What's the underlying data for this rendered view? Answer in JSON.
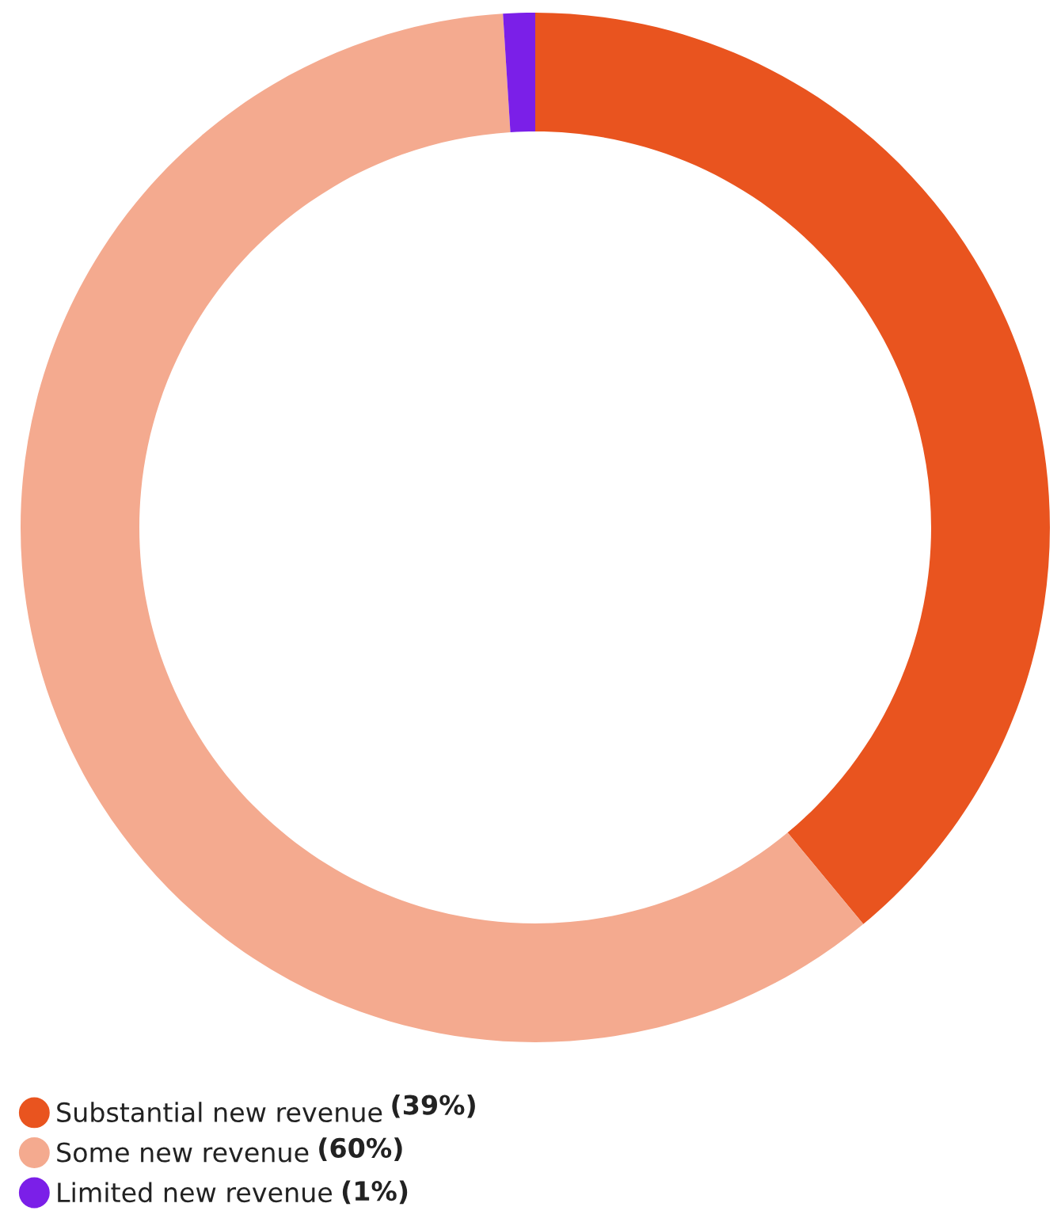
{
  "chart_data": {
    "type": "donut",
    "categories": [
      "Substantial new revenue",
      "Some new revenue",
      "Limited new revenue"
    ],
    "values": [
      39,
      60,
      1
    ],
    "value_labels": [
      "(39%)",
      "(60%)",
      "(1%)"
    ],
    "colors": [
      "#e9541f",
      "#f4aa8f",
      "#7b1fe8"
    ],
    "legend": "bottom left"
  }
}
